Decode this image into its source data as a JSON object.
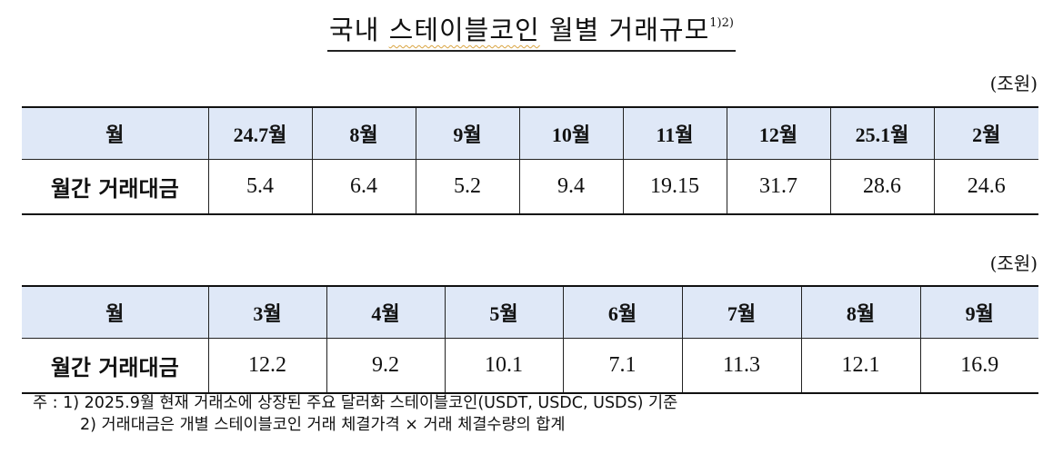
{
  "title": {
    "part1": "국내",
    "part2": "스테이블코인",
    "part3": "월별 거래규모",
    "sup": "1)2)"
  },
  "unit": "(조원)",
  "table1": {
    "header_label": "월",
    "row_label": "월간 거래대금",
    "months": [
      "24.7월",
      "8월",
      "9월",
      "10월",
      "11월",
      "12월",
      "25.1월",
      "2월"
    ],
    "values": [
      "5.4",
      "6.4",
      "5.2",
      "9.4",
      "19.15",
      "31.7",
      "28.6",
      "24.6"
    ]
  },
  "table2": {
    "header_label": "월",
    "row_label": "월간 거래대금",
    "months": [
      "3월",
      "4월",
      "5월",
      "6월",
      "7월",
      "8월",
      "9월"
    ],
    "values": [
      "12.2",
      "9.2",
      "10.1",
      "7.1",
      "11.3",
      "12.1",
      "16.9"
    ]
  },
  "notes": {
    "prefix": "주 : ",
    "line1": "1) 2025.9월 현재 거래소에 상장된 주요 달러화 스테이블코인(USDT, USDC, USDS) 기준",
    "line2": "2) 거래대금은 개별 스테이블코인 거래 체결가격 × 거래 체결수량의 합계"
  }
}
